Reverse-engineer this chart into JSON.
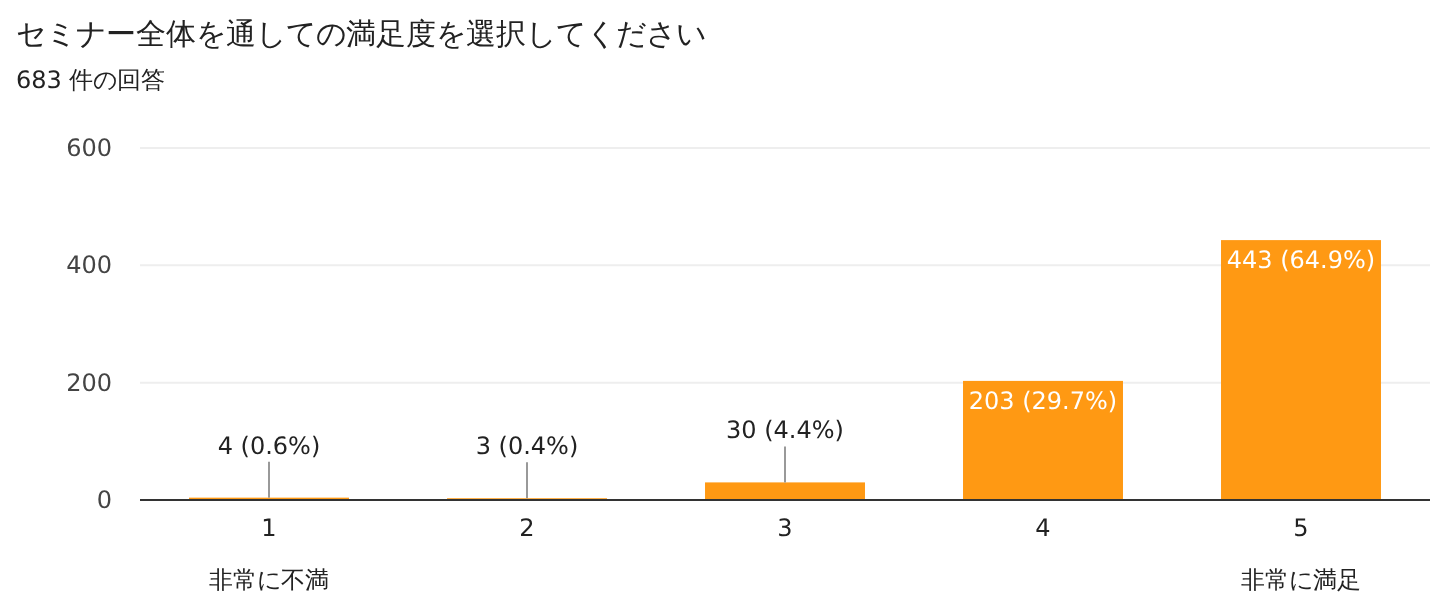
{
  "chart_data": {
    "type": "bar",
    "title": "セミナー全体を通しての満足度を選択してください",
    "subtitle": "683 件の回答",
    "categories": [
      "1",
      "2",
      "3",
      "4",
      "5"
    ],
    "values": [
      4,
      3,
      30,
      203,
      443
    ],
    "value_labels": [
      "4 (0.6%)",
      "3 (0.4%)",
      "30 (4.4%)",
      "203 (29.7%)",
      "443 (64.9%)"
    ],
    "color": "#ff9913",
    "ylim": [
      0,
      600
    ],
    "yticks": [
      0,
      200,
      400,
      600
    ],
    "grid": "y",
    "annotations": [
      "非常に不満",
      "非常に満足"
    ]
  }
}
